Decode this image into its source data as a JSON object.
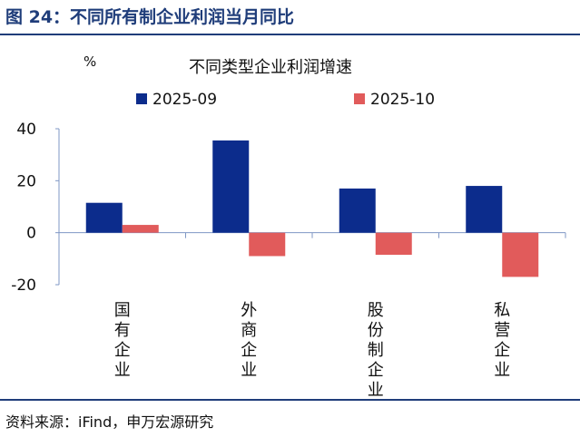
{
  "figure": {
    "title": "图 24：不同所有制企业利润当月同比",
    "source": "资料来源：iFind，申万宏源研究"
  },
  "colors": {
    "accent": "#1f3d7a",
    "series_1": "#0c2c8c",
    "series_2": "#e15b5b",
    "axis": "#7f97c4"
  },
  "chart_data": {
    "type": "bar",
    "title": "不同类型企业利润增速",
    "ylabel": "%",
    "xlabel": "",
    "categories": [
      "国有企业",
      "外商企业",
      "股份制企业",
      "私营企业"
    ],
    "series": [
      {
        "name": "2025-09",
        "values": [
          11.5,
          35.5,
          17.0,
          18.0
        ]
      },
      {
        "name": "2025-10",
        "values": [
          3.0,
          -9.0,
          -8.5,
          -17.0
        ]
      }
    ],
    "ylim": [
      -20,
      40
    ],
    "yticks": [
      -20,
      0,
      20,
      40
    ],
    "ytick_labels": [
      "-20",
      "0",
      "20",
      "40"
    ],
    "grid": false,
    "legend_position": "top"
  }
}
